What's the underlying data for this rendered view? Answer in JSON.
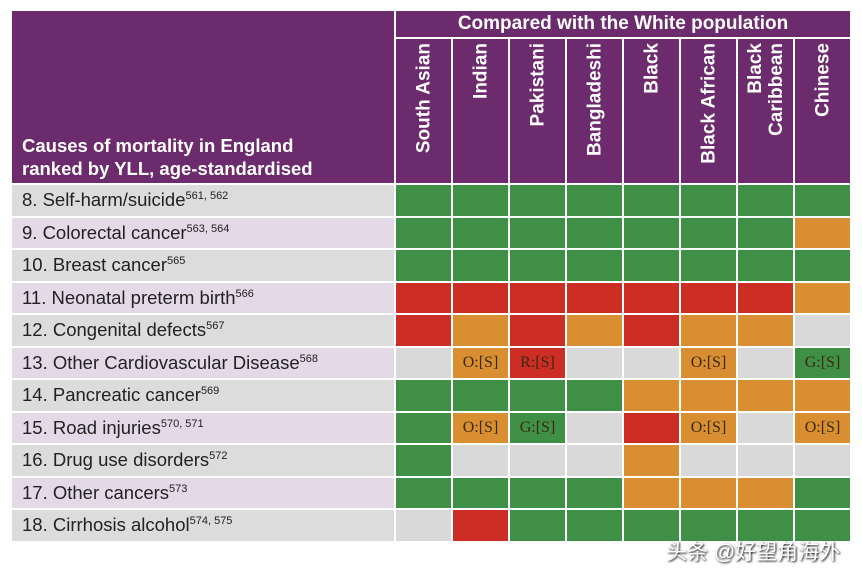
{
  "header": {
    "compared": "Compared with the White population",
    "causes_title_line1": "Causes of mortality in England",
    "causes_title_line2": "ranked by YLL, age-standardised"
  },
  "columns": [
    {
      "label": "South Asian"
    },
    {
      "label": "Indian"
    },
    {
      "label": "Pakistani"
    },
    {
      "label": "Bangladeshi"
    },
    {
      "label": "Black"
    },
    {
      "label": "Black African"
    },
    {
      "label": "Black\nCaribbean"
    },
    {
      "label": "Chinese"
    }
  ],
  "legend_colors": {
    "G": "#3f8f47",
    "O": "#d98e32",
    "R": "#cc2d25",
    "N": "#d9d9d9"
  },
  "rows": [
    {
      "label": "8. Self-harm/suicide",
      "refs": "561, 562",
      "cells": [
        "G",
        "G",
        "G",
        "G",
        "G",
        "G",
        "G",
        "G"
      ]
    },
    {
      "label": "9. Colorectal cancer",
      "refs": "563, 564",
      "cells": [
        "G",
        "G",
        "G",
        "G",
        "G",
        "G",
        "G",
        "O"
      ]
    },
    {
      "label": "10. Breast cancer",
      "refs": "565",
      "cells": [
        "G",
        "G",
        "G",
        "G",
        "G",
        "G",
        "G",
        "G"
      ]
    },
    {
      "label": "11. Neonatal preterm birth",
      "refs": "566",
      "cells": [
        "R",
        "R",
        "R",
        "R",
        "R",
        "R",
        "R",
        "O"
      ]
    },
    {
      "label": "12. Congenital defects",
      "refs": "567",
      "cells": [
        "R",
        "O",
        "R",
        "O",
        "R",
        "O",
        "O",
        "N"
      ]
    },
    {
      "label": "13. Other Cardiovascular Disease",
      "refs": "568",
      "cells": [
        "N",
        "O:[S]",
        "R:[S]",
        "N",
        "N",
        "O:[S]",
        "N",
        "G:[S]"
      ]
    },
    {
      "label": "14. Pancreatic cancer",
      "refs": "569",
      "cells": [
        "G",
        "G",
        "G",
        "G",
        "O",
        "O",
        "O",
        "O"
      ]
    },
    {
      "label": "15. Road injuries",
      "refs": "570, 571",
      "cells": [
        "G",
        "O:[S]",
        "G:[S]",
        "N",
        "R",
        "O:[S]",
        "N",
        "O:[S]"
      ]
    },
    {
      "label": "16. Drug use disorders",
      "refs": "572",
      "cells": [
        "G",
        "N",
        "N",
        "N",
        "O",
        "N",
        "N",
        "N"
      ]
    },
    {
      "label": "17. Other cancers",
      "refs": "573",
      "cells": [
        "G",
        "G",
        "G",
        "G",
        "O",
        "O",
        "O",
        "G"
      ]
    },
    {
      "label": "18. Cirrhosis alcohol",
      "refs": "574, 575",
      "cells": [
        "N",
        "R",
        "G",
        "G",
        "G",
        "G",
        "G",
        "G"
      ]
    }
  ],
  "watermark": "头条 @好望角海外"
}
